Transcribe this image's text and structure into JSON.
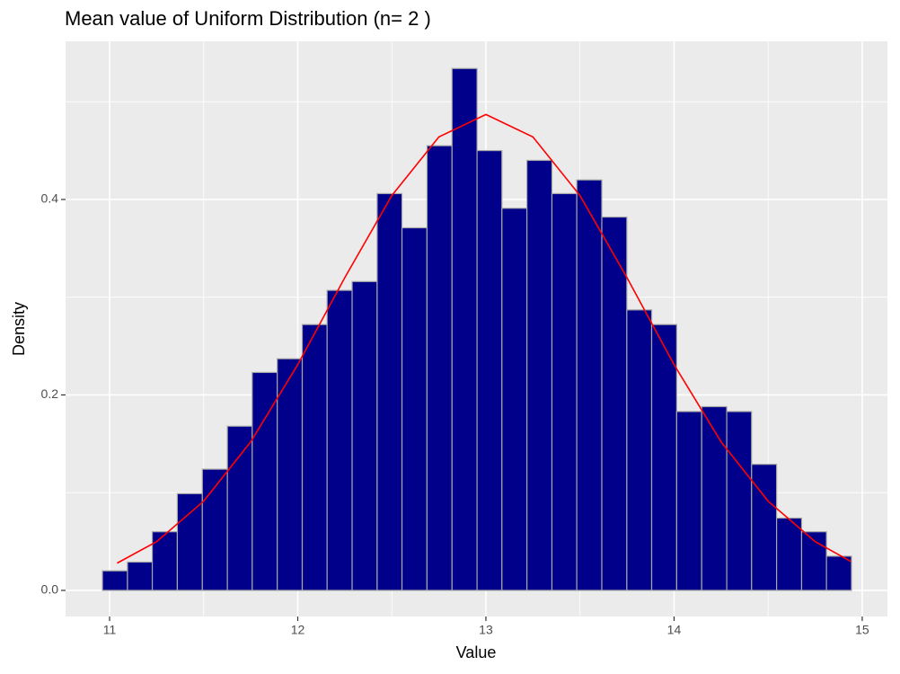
{
  "chart_data": {
    "type": "histogram",
    "title": "Mean value of Uniform Distribution (n= 2 )",
    "x_label": "Value",
    "y_label": "Density",
    "bins": [
      10.962,
      11.095,
      11.227,
      11.36,
      11.493,
      11.626,
      11.758,
      11.891,
      12.024,
      12.156,
      12.289,
      12.422,
      12.554,
      12.687,
      12.82,
      12.953,
      13.085,
      13.218,
      13.351,
      13.483,
      13.616,
      13.749,
      13.881,
      14.014,
      14.147,
      14.28,
      14.412,
      14.545,
      14.678,
      14.81,
      14.943
    ],
    "values": [
      0.02,
      0.029,
      0.06,
      0.099,
      0.124,
      0.168,
      0.223,
      0.237,
      0.272,
      0.307,
      0.316,
      0.406,
      0.371,
      0.455,
      0.534,
      0.45,
      0.391,
      0.44,
      0.406,
      0.42,
      0.382,
      0.287,
      0.272,
      0.183,
      0.188,
      0.183,
      0.129,
      0.074,
      0.06,
      0.035
    ],
    "color": "#00008b",
    "edge_color": "#a6a6a6",
    "curve": {
      "color": "#ff0000",
      "x": [
        11.04,
        11.25,
        11.5,
        11.75,
        12,
        12.25,
        12.5,
        12.75,
        13,
        13.25,
        13.5,
        13.75,
        14,
        14.25,
        14.5,
        14.75,
        14.94
      ],
      "values": [
        0.0279,
        0.0499,
        0.0913,
        0.152,
        0.231,
        0.32,
        0.404,
        0.464,
        0.487,
        0.464,
        0.404,
        0.32,
        0.231,
        0.152,
        0.0913,
        0.0499,
        0.0296
      ]
    },
    "xlim": [
      10.766,
      15.134
    ],
    "ylim": [
      -0.0267,
      0.5618
    ],
    "xticks": [
      11,
      12,
      13,
      14,
      15
    ],
    "yticks": [
      {
        "value": 0,
        "label": "0.0"
      },
      0.2,
      0.4
    ],
    "x_minor_grid": [
      11.5,
      12.5,
      13.5,
      14.5
    ],
    "y_minor_grid": [
      0.1,
      0.3,
      0.5
    ],
    "grid": true
  }
}
